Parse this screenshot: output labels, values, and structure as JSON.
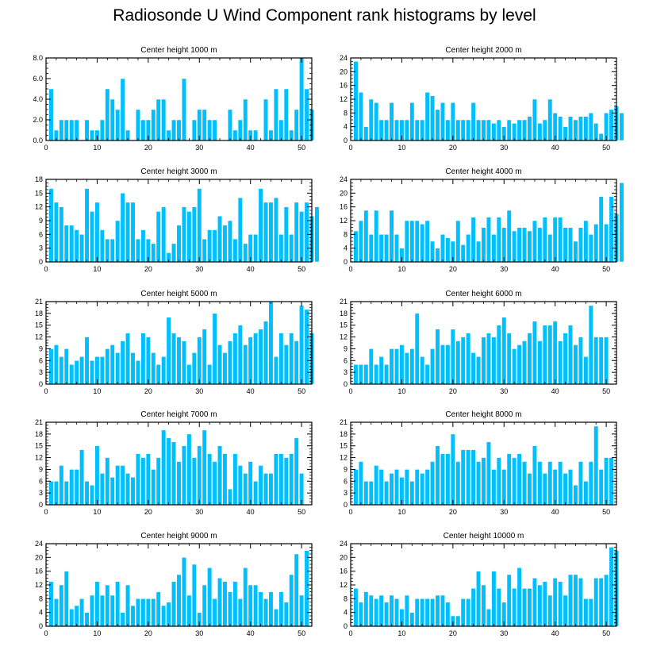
{
  "title": "Radiosonde U Wind Component rank histograms by level",
  "colors": {
    "bar": "#00BFFF",
    "bar_edge": "#ffffff",
    "axis": "#000000"
  },
  "chart_data": [
    {
      "type": "bar",
      "title": "Center height 1000 m",
      "xlim": [
        0,
        52
      ],
      "ylim": [
        0,
        8
      ],
      "yticks": [
        0,
        2,
        4,
        6,
        8
      ],
      "ytick_labels": [
        "0.0",
        "2.0",
        "4.0",
        "6.0",
        "8.0"
      ],
      "xticks": [
        0,
        10,
        20,
        30,
        40,
        50
      ],
      "values": [
        5,
        1,
        2,
        2,
        2,
        2,
        0,
        2,
        1,
        1,
        2,
        5,
        4,
        3,
        6,
        1,
        0,
        3,
        2,
        2,
        3,
        4,
        4,
        1,
        2,
        2,
        6,
        0,
        2,
        3,
        3,
        2,
        2,
        0,
        0,
        3,
        1,
        2,
        4,
        1,
        1,
        0,
        4,
        1,
        5,
        2,
        5,
        1,
        3,
        8,
        5,
        3
      ]
    },
    {
      "type": "bar",
      "title": "Center height 2000 m",
      "xlim": [
        0,
        52
      ],
      "ylim": [
        0,
        24
      ],
      "yticks": [
        0,
        4,
        8,
        12,
        16,
        20,
        24
      ],
      "ytick_labels": [
        "0",
        "4",
        "8",
        "12",
        "16",
        "20",
        "24"
      ],
      "xticks": [
        0,
        10,
        20,
        30,
        40,
        50
      ],
      "values": [
        23,
        14,
        4,
        12,
        11,
        6,
        6,
        11,
        6,
        6,
        6,
        11,
        6,
        6,
        14,
        13,
        9,
        11,
        6,
        11,
        6,
        6,
        6,
        11,
        6,
        6,
        6,
        5,
        6,
        4,
        6,
        5,
        6,
        6,
        7,
        12,
        5,
        6,
        12,
        8,
        7,
        4,
        7,
        6,
        7,
        7,
        8,
        5,
        2,
        8,
        9,
        10,
        8
      ]
    },
    {
      "type": "bar",
      "title": "Center height 3000 m",
      "xlim": [
        0,
        52
      ],
      "ylim": [
        0,
        18
      ],
      "yticks": [
        0,
        3,
        6,
        9,
        12,
        15,
        18
      ],
      "ytick_labels": [
        "0",
        "3",
        "6",
        "9",
        "12",
        "15",
        "18"
      ],
      "xticks": [
        0,
        10,
        20,
        30,
        40,
        50
      ],
      "values": [
        16,
        13,
        12,
        8,
        8,
        7,
        6,
        16,
        11,
        13,
        7,
        5,
        5,
        9,
        15,
        13,
        13,
        5,
        7,
        5,
        4,
        11,
        12,
        2,
        4,
        8,
        12,
        11,
        12,
        16,
        5,
        7,
        7,
        10,
        8,
        9,
        5,
        14,
        4,
        6,
        6,
        16,
        13,
        13,
        14,
        6,
        12,
        6,
        13,
        11,
        13,
        10,
        12
      ]
    },
    {
      "type": "bar",
      "title": "Center height 4000 m",
      "xlim": [
        0,
        52
      ],
      "ylim": [
        0,
        24
      ],
      "yticks": [
        0,
        4,
        8,
        12,
        16,
        20,
        24
      ],
      "ytick_labels": [
        "0",
        "4",
        "8",
        "12",
        "16",
        "20",
        "24"
      ],
      "xticks": [
        0,
        10,
        20,
        30,
        40,
        50
      ],
      "values": [
        9,
        12,
        15,
        8,
        15,
        8,
        8,
        15,
        8,
        4,
        12,
        12,
        12,
        11,
        12,
        6,
        4,
        8,
        7,
        6,
        12,
        5,
        8,
        13,
        6,
        10,
        13,
        8,
        13,
        10,
        15,
        9,
        10,
        10,
        9,
        12,
        10,
        13,
        8,
        13,
        13,
        10,
        10,
        6,
        10,
        12,
        8,
        11,
        19,
        11,
        19,
        14,
        23
      ]
    },
    {
      "type": "bar",
      "title": "Center height 5000 m",
      "xlim": [
        0,
        52
      ],
      "ylim": [
        0,
        21
      ],
      "yticks": [
        0,
        3,
        6,
        9,
        12,
        15,
        18,
        21
      ],
      "ytick_labels": [
        "0",
        "3",
        "6",
        "9",
        "12",
        "15",
        "18",
        "21"
      ],
      "xticks": [
        0,
        10,
        20,
        30,
        40,
        50
      ],
      "values": [
        9,
        10,
        7,
        9,
        5,
        6,
        7,
        12,
        6,
        7,
        7,
        9,
        10,
        8,
        11,
        13,
        8,
        6,
        13,
        12,
        8,
        5,
        7,
        17,
        13,
        12,
        11,
        5,
        8,
        12,
        14,
        5,
        18,
        10,
        8,
        11,
        13,
        15,
        10,
        12,
        13,
        14,
        16,
        21,
        7,
        13,
        10,
        13,
        11,
        20,
        19,
        13
      ]
    },
    {
      "type": "bar",
      "title": "Center height 6000 m",
      "xlim": [
        0,
        52
      ],
      "ylim": [
        0,
        21
      ],
      "yticks": [
        0,
        3,
        6,
        9,
        12,
        15,
        18,
        21
      ],
      "ytick_labels": [
        "0",
        "3",
        "6",
        "9",
        "12",
        "15",
        "18",
        "21"
      ],
      "xticks": [
        0,
        10,
        20,
        30,
        40,
        50
      ],
      "values": [
        5,
        5,
        5,
        9,
        5,
        7,
        5,
        9,
        9,
        10,
        8,
        9,
        18,
        7,
        5,
        9,
        14,
        10,
        10,
        14,
        11,
        12,
        13,
        8,
        7,
        12,
        13,
        12,
        15,
        17,
        13,
        9,
        10,
        11,
        13,
        16,
        11,
        15,
        15,
        16,
        11,
        13,
        15,
        10,
        12,
        7,
        20,
        12,
        12,
        12
      ]
    },
    {
      "type": "bar",
      "title": "Center height 7000 m",
      "xlim": [
        0,
        52
      ],
      "ylim": [
        0,
        21
      ],
      "yticks": [
        0,
        3,
        6,
        9,
        12,
        15,
        18,
        21
      ],
      "ytick_labels": [
        "0",
        "3",
        "6",
        "9",
        "12",
        "15",
        "18",
        "21"
      ],
      "xticks": [
        0,
        10,
        20,
        30,
        40,
        50
      ],
      "values": [
        6,
        6,
        10,
        6,
        9,
        9,
        14,
        6,
        5,
        15,
        8,
        12,
        7,
        10,
        10,
        8,
        7,
        13,
        12,
        13,
        9,
        12,
        19,
        17,
        16,
        11,
        15,
        18,
        12,
        15,
        19,
        13,
        11,
        15,
        13,
        4,
        13,
        10,
        8,
        11,
        6,
        10,
        8,
        8,
        13,
        13,
        12,
        13,
        17,
        8
      ]
    },
    {
      "type": "bar",
      "title": "Center height 8000 m",
      "xlim": [
        0,
        52
      ],
      "ylim": [
        0,
        21
      ],
      "yticks": [
        0,
        3,
        6,
        9,
        12,
        15,
        18,
        21
      ],
      "ytick_labels": [
        "0",
        "3",
        "6",
        "9",
        "12",
        "15",
        "18",
        "21"
      ],
      "xticks": [
        0,
        10,
        20,
        30,
        40,
        50
      ],
      "values": [
        9,
        11,
        6,
        6,
        10,
        9,
        6,
        8,
        9,
        7,
        9,
        6,
        9,
        8,
        9,
        11,
        15,
        13,
        13,
        18,
        11,
        14,
        14,
        14,
        11,
        12,
        16,
        9,
        12,
        9,
        13,
        12,
        13,
        11,
        8,
        15,
        11,
        8,
        11,
        9,
        11,
        8,
        9,
        5,
        11,
        6,
        11,
        20,
        9,
        12,
        12
      ]
    },
    {
      "type": "bar",
      "title": "Center height 9000 m",
      "xlim": [
        0,
        52
      ],
      "ylim": [
        0,
        24
      ],
      "yticks": [
        0,
        4,
        8,
        12,
        16,
        20,
        24
      ],
      "ytick_labels": [
        "0",
        "4",
        "8",
        "12",
        "16",
        "20",
        "24"
      ],
      "xticks": [
        0,
        10,
        20,
        30,
        40,
        50
      ],
      "values": [
        13,
        8,
        12,
        16,
        5,
        6,
        8,
        4,
        9,
        13,
        9,
        12,
        9,
        13,
        4,
        12,
        6,
        8,
        8,
        8,
        8,
        10,
        6,
        7,
        13,
        15,
        20,
        9,
        18,
        4,
        12,
        17,
        8,
        14,
        13,
        10,
        13,
        8,
        17,
        12,
        12,
        10,
        8,
        10,
        5,
        10,
        7,
        15,
        21,
        9,
        22
      ]
    },
    {
      "type": "bar",
      "title": "Center height 10000 m",
      "xlim": [
        0,
        52
      ],
      "ylim": [
        0,
        24
      ],
      "yticks": [
        0,
        4,
        8,
        12,
        16,
        20,
        24
      ],
      "ytick_labels": [
        "0",
        "4",
        "8",
        "12",
        "16",
        "20",
        "24"
      ],
      "xticks": [
        0,
        10,
        20,
        30,
        40,
        50
      ],
      "values": [
        11,
        7,
        10,
        9,
        8,
        9,
        7,
        9,
        8,
        5,
        9,
        4,
        8,
        8,
        8,
        8,
        9,
        9,
        7,
        3,
        3,
        8,
        8,
        11,
        16,
        12,
        5,
        16,
        11,
        7,
        15,
        11,
        17,
        11,
        11,
        14,
        12,
        13,
        9,
        14,
        13,
        9,
        15,
        15,
        14,
        8,
        8,
        14,
        14,
        15,
        23,
        22
      ]
    }
  ]
}
